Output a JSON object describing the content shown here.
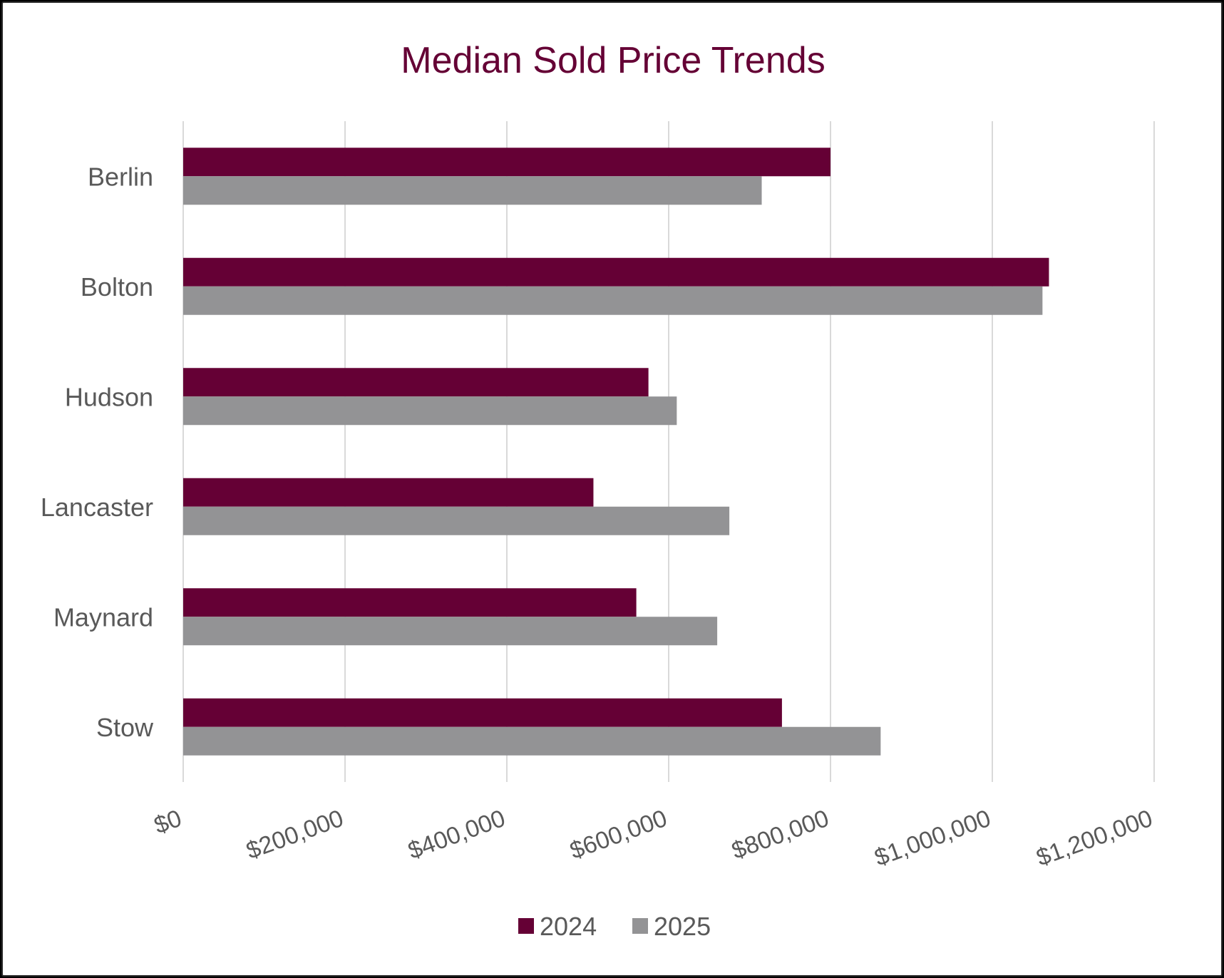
{
  "chart_data": {
    "type": "bar",
    "orientation": "horizontal",
    "title": "Median Sold Price Trends",
    "categories": [
      "Berlin",
      "Bolton",
      "Hudson",
      "Lancaster",
      "Maynard",
      "Stow"
    ],
    "series": [
      {
        "name": "2024",
        "color": "#650035",
        "values": [
          800000,
          1070000,
          575000,
          507000,
          560000,
          740000
        ]
      },
      {
        "name": "2025",
        "color": "#939395",
        "values": [
          715000,
          1062000,
          610000,
          675000,
          660000,
          862000
        ]
      }
    ],
    "xlim": [
      0,
      1200000
    ],
    "x_ticks": [
      0,
      200000,
      400000,
      600000,
      800000,
      1000000,
      1200000
    ],
    "x_tick_labels": [
      "$0",
      "$200,000",
      "$400,000",
      "$600,000",
      "$800,000",
      "$1,000,000",
      "$1,200,000"
    ],
    "xlabel": "",
    "ylabel": "",
    "grid": true,
    "legend_position": "bottom-center",
    "title_color": "#650035",
    "grid_color": "#d9d9d9",
    "label_color": "#595959"
  }
}
